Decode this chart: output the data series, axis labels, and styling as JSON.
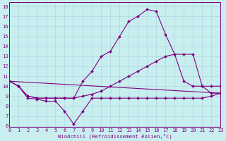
{
  "xlabel": "Windchill (Refroidissement éolien,°C)",
  "xlim": [
    0,
    23
  ],
  "ylim": [
    6,
    18
  ],
  "yticks": [
    6,
    7,
    8,
    9,
    10,
    11,
    12,
    13,
    14,
    15,
    16,
    17,
    18
  ],
  "xticks": [
    0,
    1,
    2,
    3,
    4,
    5,
    6,
    7,
    8,
    9,
    10,
    11,
    12,
    13,
    14,
    15,
    16,
    17,
    18,
    19,
    20,
    21,
    22,
    23
  ],
  "bg_color": "#c8eef0",
  "line_color": "#800080",
  "grid_color": "#b0d8dc",
  "series": [
    {
      "x": [
        0,
        1,
        2,
        3,
        4,
        5,
        6,
        7,
        8,
        9,
        10,
        11,
        12,
        13,
        14,
        15,
        16,
        17,
        18,
        19,
        20,
        21,
        22,
        23
      ],
      "y": [
        10.5,
        10.0,
        9.0,
        8.8,
        8.8,
        8.8,
        8.8,
        8.8,
        10.5,
        11.5,
        13.0,
        13.5,
        15.0,
        16.5,
        17.0,
        17.7,
        17.5,
        15.2,
        13.2,
        10.5,
        10.0,
        10.0,
        10.0,
        10.0
      ],
      "markers": true
    },
    {
      "x": [
        0,
        23
      ],
      "y": [
        10.5,
        9.3
      ],
      "markers": false
    },
    {
      "x": [
        0,
        1,
        2,
        3,
        4,
        5,
        6,
        7,
        8,
        9,
        10,
        11,
        12,
        13,
        14,
        15,
        16,
        17,
        18,
        19,
        20,
        21,
        22,
        23
      ],
      "y": [
        10.5,
        10.0,
        9.0,
        8.8,
        8.8,
        8.8,
        8.8,
        8.8,
        9.0,
        9.2,
        9.5,
        10.0,
        10.5,
        11.0,
        11.5,
        12.0,
        12.5,
        13.0,
        13.2,
        13.2,
        13.2,
        10.0,
        9.3,
        9.3
      ],
      "markers": true
    },
    {
      "x": [
        0,
        1,
        2,
        3,
        4,
        5,
        6,
        7,
        8,
        9,
        10,
        11,
        12,
        13,
        14,
        15,
        16,
        17,
        18,
        19,
        20,
        21,
        22,
        23
      ],
      "y": [
        10.5,
        10.0,
        8.8,
        8.7,
        8.5,
        8.5,
        7.5,
        6.2,
        7.5,
        8.8,
        8.8,
        8.8,
        8.8,
        8.8,
        8.8,
        8.8,
        8.8,
        8.8,
        8.8,
        8.8,
        8.8,
        8.8,
        9.0,
        9.3
      ],
      "markers": true
    }
  ]
}
